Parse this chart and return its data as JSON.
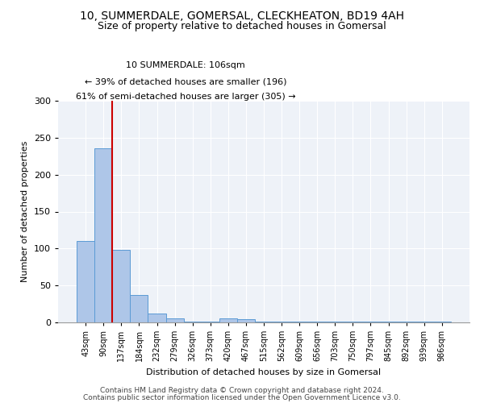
{
  "title1": "10, SUMMERDALE, GOMERSAL, CLECKHEATON, BD19 4AH",
  "title2": "Size of property relative to detached houses in Gomersal",
  "xlabel": "Distribution of detached houses by size in Gomersal",
  "ylabel": "Number of detached properties",
  "categories": [
    "43sqm",
    "90sqm",
    "137sqm",
    "184sqm",
    "232sqm",
    "279sqm",
    "326sqm",
    "373sqm",
    "420sqm",
    "467sqm",
    "515sqm",
    "562sqm",
    "609sqm",
    "656sqm",
    "703sqm",
    "750sqm",
    "797sqm",
    "845sqm",
    "892sqm",
    "939sqm",
    "986sqm"
  ],
  "values": [
    110,
    236,
    98,
    37,
    12,
    5,
    1,
    1,
    5,
    4,
    1,
    1,
    1,
    1,
    1,
    1,
    1,
    1,
    1,
    1,
    1
  ],
  "bar_color": "#aec6e8",
  "bar_edge_color": "#5b9bd5",
  "vline_x": 1.5,
  "vline_color": "#cc0000",
  "annotation_text": "10 SUMMERDALE: 106sqm\n← 39% of detached houses are smaller (196)\n61% of semi-detached houses are larger (305) →",
  "annotation_box_color": "white",
  "annotation_box_edge": "#cc0000",
  "ylim": [
    0,
    300
  ],
  "yticks": [
    0,
    50,
    100,
    150,
    200,
    250,
    300
  ],
  "footer1": "Contains HM Land Registry data © Crown copyright and database right 2024.",
  "footer2": "Contains public sector information licensed under the Open Government Licence v3.0.",
  "background_color": "#eef2f8",
  "title_fontsize": 10,
  "subtitle_fontsize": 9,
  "axis_fontsize": 8,
  "tick_fontsize": 7,
  "footer_fontsize": 6.5
}
